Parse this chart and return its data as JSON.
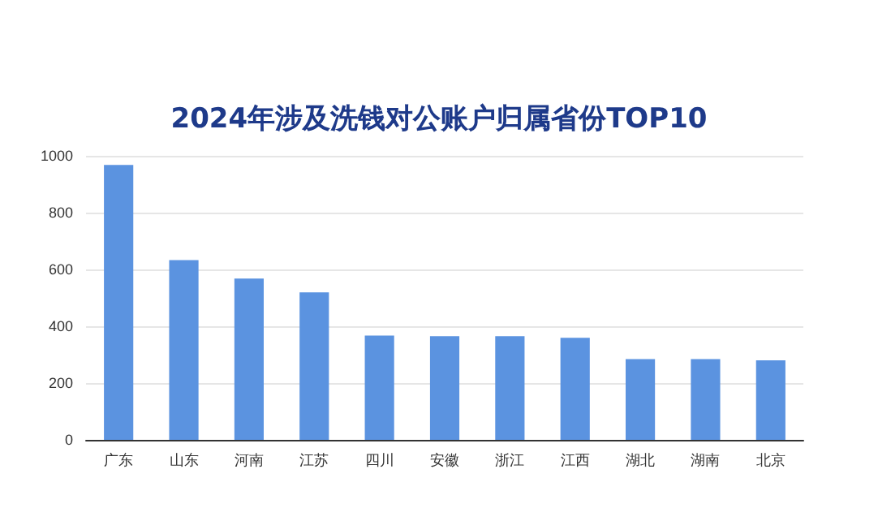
{
  "chart_data": {
    "type": "bar",
    "title": "2024年涉及洗钱对公账户归属省份TOP10",
    "categories": [
      "广东",
      "山东",
      "河南",
      "江苏",
      "四川",
      "安徽",
      "浙江",
      "江西",
      "湖北",
      "湖南",
      "北京"
    ],
    "values": [
      968,
      633,
      568,
      519,
      367,
      365,
      365,
      359,
      284,
      284,
      280
    ],
    "color": "#5b93e0",
    "ylim": [
      0,
      1000
    ],
    "yticks": [
      0,
      200,
      400,
      600,
      800,
      1000
    ],
    "grid": "y"
  }
}
